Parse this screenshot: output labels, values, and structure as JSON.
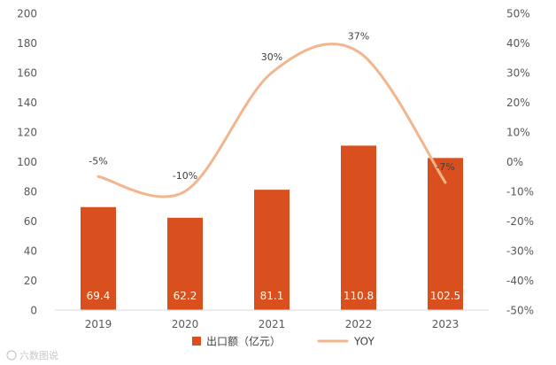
{
  "chart_data": {
    "type": "bar",
    "title": "",
    "categories": [
      "2019",
      "2020",
      "2021",
      "2022",
      "2023"
    ],
    "series": [
      {
        "name": "出口额（亿元）",
        "type": "bar",
        "axis": "left",
        "color": "#D9501E",
        "values": [
          69.4,
          62.2,
          81.1,
          110.8,
          102.5
        ],
        "labels": [
          "69.4",
          "62.2",
          "81.1",
          "110.8",
          "102.5"
        ]
      },
      {
        "name": "YOY",
        "type": "line",
        "axis": "right",
        "color": "#F2B58E",
        "values": [
          -5,
          -10,
          30,
          37,
          -7
        ],
        "labels": [
          "-5%",
          "-10%",
          "30%",
          "37%",
          "-7%"
        ]
      }
    ],
    "left_axis": {
      "min": 0,
      "max": 200,
      "step": 20,
      "ticks": [
        "0",
        "20",
        "40",
        "60",
        "80",
        "100",
        "120",
        "140",
        "160",
        "180",
        "200"
      ]
    },
    "right_axis": {
      "min": -50,
      "max": 50,
      "step": 10,
      "ticks": [
        "-50%",
        "-40%",
        "-30%",
        "-20%",
        "-10%",
        "0%",
        "10%",
        "20%",
        "30%",
        "40%",
        "50%"
      ]
    },
    "legend_position": "bottom",
    "grid": false
  },
  "legend": {
    "bar_label": "出口额（亿元）",
    "line_label": "YOY"
  },
  "watermark": "六数图说"
}
